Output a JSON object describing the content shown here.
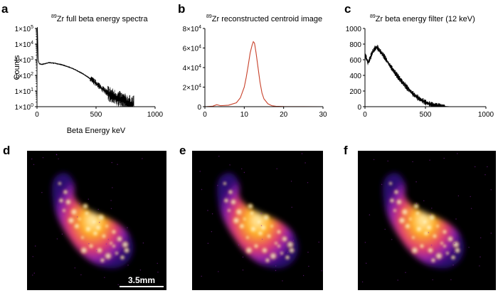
{
  "panels": {
    "a": {
      "letter": "a",
      "title_sup": "89",
      "title_text": "Zr full beta energy spectra"
    },
    "b": {
      "letter": "b",
      "title_sup": "89",
      "title_text": "Zr reconstructed centroid image"
    },
    "c": {
      "letter": "c",
      "title_sup": "89",
      "title_text": "Zr beta energy filter (12 keV)"
    },
    "d": {
      "letter": "d",
      "scalebar_label": "3.5mm"
    },
    "e": {
      "letter": "e"
    },
    "f": {
      "letter": "f"
    }
  },
  "colors": {
    "line_black": "#000000",
    "line_red": "#c8412a",
    "image_background": "#000000",
    "hot_1": "#2a0a6e",
    "hot_2": "#8a1fa8",
    "hot_3": "#e4406a",
    "hot_4": "#ffb020",
    "hot_5": "#fff6c0"
  },
  "chart_data": [
    {
      "id": "a",
      "type": "line",
      "title": "89Zr full beta energy spectra",
      "xlabel": "Beta Energy keV",
      "ylabel": "Counts",
      "yscale": "log",
      "xlim": [
        0,
        1000
      ],
      "ylim": [
        1,
        100000
      ],
      "xticks": [
        0,
        500,
        1000
      ],
      "xtick_labels": [
        "0",
        "500",
        "1000"
      ],
      "ytick_labels": [
        {
          "base": "1×10",
          "exp": "0"
        },
        {
          "base": "1×10",
          "exp": "1"
        },
        {
          "base": "1×10",
          "exp": "2"
        },
        {
          "base": "1×10",
          "exp": "3"
        },
        {
          "base": "1×10",
          "exp": "4"
        },
        {
          "base": "1×10",
          "exp": "5"
        }
      ],
      "x": [
        0,
        3,
        6,
        9,
        12,
        20,
        40,
        70,
        100,
        150,
        200,
        250,
        300,
        350,
        400,
        450,
        500,
        550,
        600,
        650,
        700,
        750,
        800
      ],
      "y": [
        1000,
        120000,
        15000,
        1500,
        800,
        560,
        500,
        560,
        650,
        600,
        500,
        380,
        280,
        180,
        110,
        60,
        30,
        14,
        7,
        4,
        3,
        2,
        1.5
      ],
      "color": "#000000"
    },
    {
      "id": "b",
      "type": "line",
      "title": "89Zr reconstructed centroid image",
      "xlim": [
        0,
        30
      ],
      "ylim": [
        0,
        80000
      ],
      "xticks": [
        0,
        10,
        20,
        30
      ],
      "xtick_labels": [
        "0",
        "10",
        "20",
        "30"
      ],
      "yticks": [
        0,
        20000,
        40000,
        60000,
        80000
      ],
      "ytick_labels": [
        {
          "base": "0",
          "exp": ""
        },
        {
          "base": "2×10",
          "exp": "4"
        },
        {
          "base": "4×10",
          "exp": "4"
        },
        {
          "base": "6×10",
          "exp": "4"
        },
        {
          "base": "8×10",
          "exp": "4"
        }
      ],
      "x": [
        0,
        2,
        3,
        4,
        6,
        8,
        9,
        10,
        10.5,
        11,
        11.5,
        12,
        12.3,
        12.6,
        13,
        13.5,
        14,
        14.5,
        15,
        16,
        17,
        18,
        20,
        25,
        30
      ],
      "y": [
        0,
        500,
        2000,
        1000,
        1500,
        4000,
        9000,
        20000,
        30000,
        42000,
        55000,
        63000,
        66500,
        65000,
        55000,
        40000,
        25000,
        14000,
        8000,
        3000,
        1000,
        400,
        150,
        50,
        0
      ],
      "color": "#c8412a"
    },
    {
      "id": "c",
      "type": "line",
      "title": "89Zr beta energy filter (12 keV)",
      "xlim": [
        0,
        1000
      ],
      "ylim": [
        0,
        1000
      ],
      "xticks": [
        0,
        500,
        1000
      ],
      "xtick_labels": [
        "0",
        "500",
        "1000"
      ],
      "yticks": [
        0,
        200,
        400,
        600,
        800,
        1000
      ],
      "ytick_labels": [
        {
          "base": "0",
          "exp": ""
        },
        {
          "base": "200",
          "exp": ""
        },
        {
          "base": "400",
          "exp": ""
        },
        {
          "base": "600",
          "exp": ""
        },
        {
          "base": "800",
          "exp": ""
        },
        {
          "base": "1000",
          "exp": ""
        }
      ],
      "x": [
        0,
        10,
        25,
        40,
        60,
        80,
        100,
        120,
        140,
        160,
        200,
        250,
        300,
        350,
        400,
        450,
        500,
        550,
        600,
        650,
        700,
        800,
        1000
      ],
      "y": [
        660,
        630,
        560,
        610,
        690,
        740,
        760,
        720,
        680,
        640,
        540,
        430,
        330,
        240,
        160,
        100,
        55,
        25,
        10,
        4,
        0,
        0,
        0
      ],
      "color": "#000000"
    }
  ]
}
